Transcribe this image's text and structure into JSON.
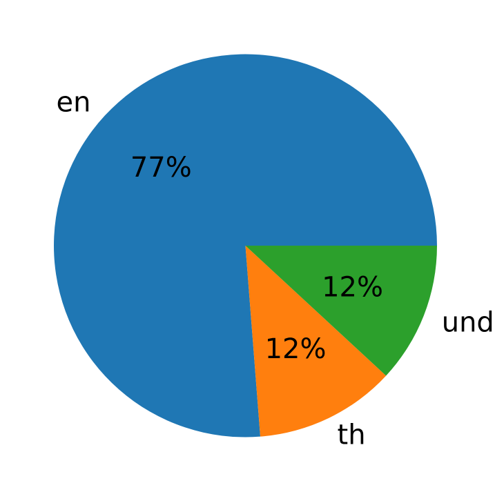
{
  "figure": {
    "background_color": "#ffffff"
  },
  "chart_data": {
    "type": "pie",
    "title": "",
    "labels": [
      "en",
      "th",
      "und"
    ],
    "values": [
      77,
      12,
      12
    ],
    "percent_labels": [
      "77%",
      "12%",
      "12%"
    ],
    "colors": [
      "#1f77b4",
      "#ff7f0e",
      "#2ca02c"
    ],
    "text_color": "#000000",
    "start_angle_deg": 0,
    "counterclockwise": true,
    "label_radius_frac": 1.1,
    "percent_radius_frac": 0.6,
    "legend": "none",
    "grid": "off"
  }
}
